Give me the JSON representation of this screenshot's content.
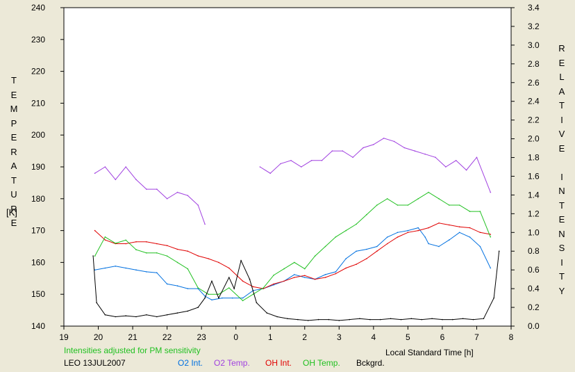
{
  "chart_data": {
    "type": "line",
    "station": "LEO 13JUL2007",
    "note": "Intensities adjusted for PM sensitivity",
    "xlabel": "Local Standard Time [h]",
    "ylabel_left": "TEMPERATURE",
    "ylabel_left_unit": "[K]",
    "ylabel_right": "RELATIVE INTENSITY",
    "x_ticks": [
      "19",
      "20",
      "21",
      "22",
      "23",
      "0",
      "1",
      "2",
      "3",
      "4",
      "5",
      "6",
      "7",
      "8"
    ],
    "y_left_ticks": [
      "140",
      "150",
      "160",
      "170",
      "180",
      "190",
      "200",
      "210",
      "220",
      "230",
      "240"
    ],
    "y_right_ticks": [
      "0.0",
      "0.2",
      "0.4",
      "0.6",
      "0.8",
      "1.0",
      "1.2",
      "1.4",
      "1.6",
      "1.8",
      "2.0",
      "2.2",
      "2.4",
      "2.6",
      "2.8",
      "3.0",
      "3.2",
      "3.4"
    ],
    "xlim": [
      19,
      32
    ],
    "ylim_left": [
      140,
      240
    ],
    "ylim_right": [
      0,
      3.4
    ],
    "grid": false,
    "legend_placement": "bottom",
    "series": [
      {
        "name": "O2 Int.",
        "axis": "right",
        "color": "#0070e0",
        "x": [
          19.9,
          20.2,
          20.5,
          20.8,
          21.1,
          21.4,
          21.7,
          22.0,
          22.3,
          22.6,
          22.9,
          23.1,
          23.3,
          23.6,
          23.9,
          24.2,
          24.5,
          24.8,
          25.1,
          25.4,
          25.7,
          26.0,
          26.3,
          26.6,
          26.9,
          27.2,
          27.5,
          27.8,
          28.1,
          28.4,
          28.7,
          29.0,
          29.3,
          29.5,
          29.6,
          29.9,
          30.2,
          30.5,
          30.8,
          31.1,
          31.4
        ],
        "y": [
          0.6,
          0.62,
          0.64,
          0.62,
          0.6,
          0.58,
          0.57,
          0.45,
          0.43,
          0.4,
          0.4,
          0.32,
          0.28,
          0.3,
          0.3,
          0.3,
          0.38,
          0.4,
          0.44,
          0.48,
          0.55,
          0.52,
          0.5,
          0.55,
          0.58,
          0.72,
          0.8,
          0.82,
          0.85,
          0.95,
          1.0,
          1.02,
          1.05,
          0.95,
          0.88,
          0.85,
          0.92,
          1.0,
          0.95,
          0.85,
          0.62
        ]
      },
      {
        "name": "O2 Temp.",
        "axis": "left",
        "color": "#a040e0",
        "x": [
          19.9,
          20.2,
          20.5,
          20.8,
          21.1,
          21.4,
          21.7,
          22.0,
          22.3,
          22.6,
          22.9,
          23.1,
          24.7,
          25.0,
          25.3,
          25.6,
          25.9,
          26.2,
          26.5,
          26.8,
          27.1,
          27.4,
          27.7,
          28.0,
          28.3,
          28.6,
          28.9,
          29.2,
          29.5,
          29.8,
          30.1,
          30.4,
          30.7,
          31.0,
          31.4
        ],
        "y": [
          188,
          190,
          186,
          190,
          186,
          183,
          183,
          180,
          182,
          181,
          178,
          172,
          190,
          188,
          191,
          192,
          190,
          192,
          192,
          195,
          195,
          193,
          196,
          197,
          199,
          198,
          196,
          195,
          194,
          193,
          190,
          192,
          189,
          193,
          182
        ]
      },
      {
        "name": "OH Int.",
        "axis": "right",
        "color": "#e00000",
        "x": [
          19.9,
          20.2,
          20.5,
          20.8,
          21.1,
          21.4,
          21.7,
          22.0,
          22.3,
          22.6,
          22.9,
          23.2,
          23.5,
          23.8,
          24.2,
          24.5,
          24.8,
          25.1,
          25.4,
          25.7,
          26.0,
          26.3,
          26.6,
          26.9,
          27.2,
          27.5,
          27.8,
          28.1,
          28.4,
          28.7,
          29.0,
          29.3,
          29.6,
          29.9,
          30.2,
          30.5,
          30.8,
          31.1,
          31.4
        ],
        "y": [
          1.02,
          0.92,
          0.88,
          0.88,
          0.9,
          0.9,
          0.88,
          0.86,
          0.82,
          0.8,
          0.75,
          0.72,
          0.68,
          0.62,
          0.48,
          0.42,
          0.4,
          0.45,
          0.48,
          0.52,
          0.54,
          0.5,
          0.52,
          0.56,
          0.62,
          0.66,
          0.72,
          0.8,
          0.88,
          0.95,
          1.0,
          1.02,
          1.05,
          1.1,
          1.08,
          1.06,
          1.05,
          1.0,
          0.98
        ]
      },
      {
        "name": "OH Temp.",
        "axis": "left",
        "color": "#20c020",
        "x": [
          19.9,
          20.2,
          20.5,
          20.8,
          21.1,
          21.4,
          21.7,
          22.0,
          22.3,
          22.6,
          22.9,
          23.2,
          23.5,
          23.8,
          24.2,
          24.5,
          24.8,
          25.1,
          25.4,
          25.7,
          26.0,
          26.3,
          26.6,
          26.9,
          27.2,
          27.5,
          27.8,
          28.1,
          28.4,
          28.7,
          29.0,
          29.3,
          29.6,
          29.9,
          30.2,
          30.5,
          30.8,
          31.1,
          31.4
        ],
        "y": [
          162,
          168,
          166,
          167,
          164,
          163,
          163,
          162,
          160,
          158,
          152,
          150,
          150,
          152,
          148,
          150,
          152,
          156,
          158,
          160,
          158,
          162,
          165,
          168,
          170,
          172,
          175,
          178,
          180,
          178,
          178,
          180,
          182,
          180,
          178,
          178,
          176,
          176,
          168
        ]
      },
      {
        "name": "Bckgrd.",
        "axis": "right",
        "color": "#000000",
        "x": [
          19.85,
          19.95,
          20.2,
          20.5,
          20.8,
          21.1,
          21.4,
          21.7,
          22.0,
          22.3,
          22.6,
          22.9,
          23.1,
          23.3,
          23.5,
          23.8,
          23.95,
          24.15,
          24.4,
          24.6,
          24.9,
          25.2,
          25.5,
          25.8,
          26.1,
          26.4,
          26.7,
          27.0,
          27.3,
          27.6,
          27.9,
          28.2,
          28.5,
          28.8,
          29.1,
          29.4,
          29.7,
          30.0,
          30.3,
          30.6,
          30.9,
          31.2,
          31.5,
          31.65
        ],
        "y": [
          0.75,
          0.25,
          0.12,
          0.1,
          0.11,
          0.1,
          0.12,
          0.1,
          0.12,
          0.14,
          0.16,
          0.2,
          0.3,
          0.48,
          0.3,
          0.52,
          0.4,
          0.7,
          0.5,
          0.25,
          0.14,
          0.1,
          0.08,
          0.07,
          0.06,
          0.07,
          0.07,
          0.06,
          0.07,
          0.08,
          0.07,
          0.07,
          0.08,
          0.07,
          0.08,
          0.07,
          0.08,
          0.07,
          0.07,
          0.08,
          0.07,
          0.08,
          0.3,
          0.8
        ]
      }
    ]
  }
}
